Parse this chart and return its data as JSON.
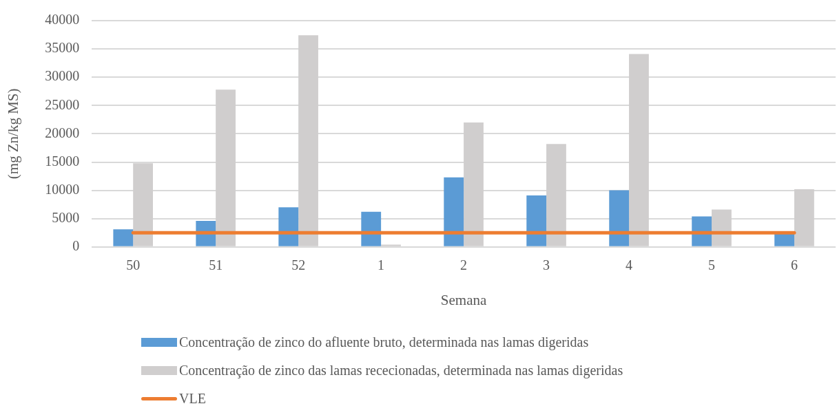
{
  "chart_data": {
    "type": "bar",
    "xlabel": "Semana",
    "ylabel": "(mg Zn/kg MS)",
    "categories": [
      "50",
      "51",
      "52",
      "1",
      "2",
      "3",
      "4",
      "5",
      "6"
    ],
    "series": [
      {
        "name": "Concentração de zinco do afluente bruto, determinada nas lamas digeridas",
        "color": "#5b9bd5",
        "values": [
          3100,
          4600,
          7000,
          6200,
          12300,
          9100,
          10000,
          5400,
          2300
        ]
      },
      {
        "name": "Concentração de zinco das lamas rececionadas, determinada nas lamas digeridas",
        "color": "#d0cece",
        "values": [
          14800,
          27800,
          37400,
          400,
          22000,
          18200,
          34100,
          6600,
          10200
        ]
      },
      {
        "name": "VLE",
        "type": "line",
        "color": "#ed7d31",
        "values": [
          2500,
          2500,
          2500,
          2500,
          2500,
          2500,
          2500,
          2500,
          2500
        ]
      }
    ],
    "ylim": [
      0,
      40000
    ],
    "yticks": [
      0,
      5000,
      10000,
      15000,
      20000,
      25000,
      30000,
      35000,
      40000
    ],
    "grid": "y",
    "legend": "bottom",
    "marker": "none"
  }
}
